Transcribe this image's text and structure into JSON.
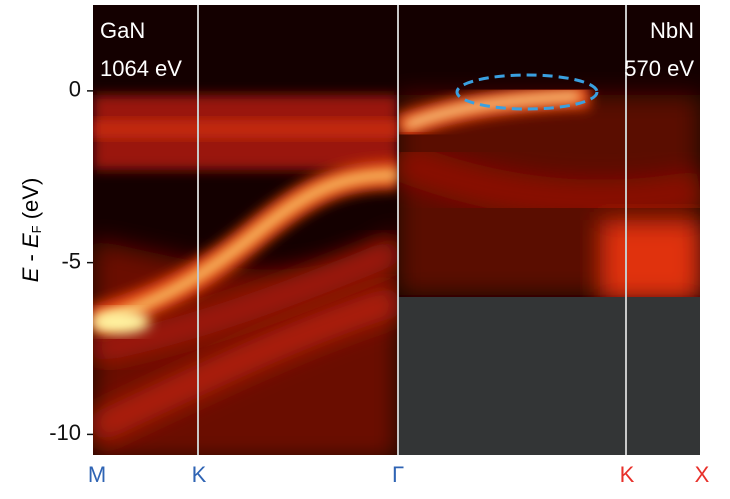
{
  "chart_data": {
    "type": "image",
    "ylabel": [
      "E",
      " - ",
      "E",
      "F",
      " (eV)"
    ],
    "ylim": [
      -10.6,
      2.5
    ],
    "yticks": [
      0,
      -5,
      -10
    ],
    "categories": [
      "M",
      "K",
      "Γ",
      "K",
      "X"
    ],
    "category_colors": [
      "#2f64b4",
      "#2f64b4",
      "#2f64b4",
      "#e8302a",
      "#e8302a"
    ],
    "annotations": [
      "GaN",
      "1064 eV",
      "NbN",
      "570 eV"
    ]
  }
}
